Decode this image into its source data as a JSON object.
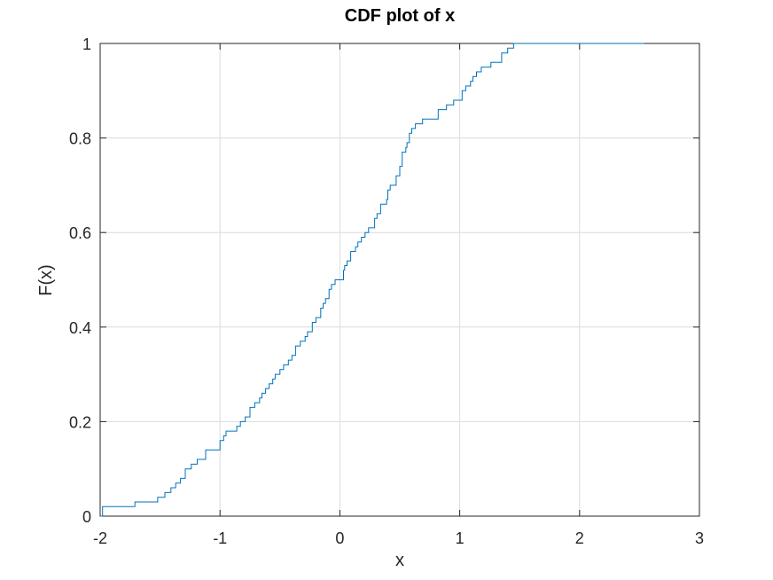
{
  "chart_data": {
    "type": "line",
    "step": true,
    "title": "CDF plot of x",
    "xlabel": "x",
    "ylabel": "F(x)",
    "xlim": [
      -2,
      3
    ],
    "ylim": [
      0,
      1
    ],
    "xticks": [
      "-2",
      "-1",
      "0",
      "1",
      "2",
      "3"
    ],
    "yticks": [
      "0",
      "0.2",
      "0.4",
      "0.6",
      "0.8",
      "1"
    ],
    "grid": true,
    "line_color": "#0072bd",
    "series": [
      {
        "x": [
          -1.98,
          -1.71,
          -1.52,
          -1.46,
          -1.41,
          -1.37,
          -1.33,
          -1.29,
          -1.24,
          -1.19,
          -1.12,
          -1.0,
          -0.97,
          -0.95,
          -0.86,
          -0.83,
          -0.79,
          -0.75,
          -0.71,
          -0.67,
          -0.65,
          -0.62,
          -0.59,
          -0.56,
          -0.54,
          -0.5,
          -0.47,
          -0.43,
          -0.4,
          -0.37,
          -0.33,
          -0.29,
          -0.27,
          -0.23,
          -0.2,
          -0.16,
          -0.14,
          -0.12,
          -0.09,
          -0.07,
          -0.04,
          0.03,
          0.04,
          0.06,
          0.09,
          0.13,
          0.15,
          0.18,
          0.21,
          0.24,
          0.29,
          0.31,
          0.34,
          0.39,
          0.4,
          0.42,
          0.47,
          0.5,
          0.52,
          0.55,
          0.56,
          0.58,
          0.6,
          0.63,
          0.69,
          0.82,
          0.89,
          0.95,
          1.02,
          1.05,
          1.09,
          1.11,
          1.14,
          1.18,
          1.26,
          1.35,
          1.4,
          1.45,
          1.49,
          1.55,
          1.77,
          1.84,
          2.54
        ],
        "y": [
          0.02,
          0.03,
          0.04,
          0.05,
          0.06,
          0.07,
          0.08,
          0.1,
          0.11,
          0.12,
          0.14,
          0.16,
          0.17,
          0.18,
          0.19,
          0.2,
          0.21,
          0.23,
          0.24,
          0.25,
          0.26,
          0.27,
          0.28,
          0.29,
          0.3,
          0.31,
          0.32,
          0.33,
          0.34,
          0.36,
          0.37,
          0.38,
          0.39,
          0.41,
          0.42,
          0.44,
          0.45,
          0.46,
          0.48,
          0.49,
          0.5,
          0.52,
          0.53,
          0.54,
          0.56,
          0.57,
          0.58,
          0.59,
          0.6,
          0.61,
          0.63,
          0.64,
          0.66,
          0.67,
          0.69,
          0.7,
          0.72,
          0.74,
          0.77,
          0.78,
          0.79,
          0.81,
          0.82,
          0.83,
          0.84,
          0.86,
          0.87,
          0.88,
          0.9,
          0.91,
          0.92,
          0.93,
          0.94,
          0.95,
          0.96,
          0.98,
          0.99,
          1.0,
          1.0,
          1.0,
          1.0,
          1.0,
          1.0
        ],
        "x_start": -2,
        "y_start": 0
      }
    ]
  }
}
